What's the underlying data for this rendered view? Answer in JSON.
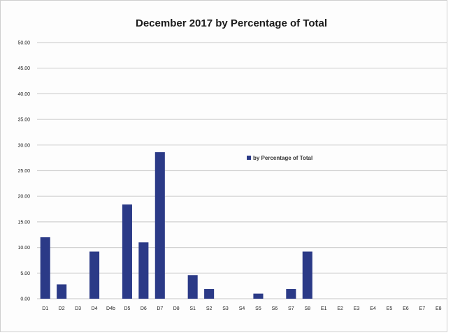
{
  "chart_data": {
    "type": "bar",
    "title": "December 2017 by Percentage of Total",
    "xlabel": "",
    "ylabel": "",
    "categories": [
      "D1",
      "D2",
      "D3",
      "D4",
      "D4b",
      "D5",
      "D6",
      "D7",
      "D8",
      "S1",
      "S2",
      "S3",
      "S4",
      "S5",
      "S6",
      "S7",
      "S8",
      "E1",
      "E2",
      "E3",
      "E4",
      "E5",
      "E6",
      "E7",
      "E8"
    ],
    "series": [
      {
        "name": "by Percentage of Total",
        "values": [
          12.0,
          2.8,
          0,
          9.2,
          0,
          18.4,
          11.0,
          28.6,
          0,
          4.6,
          1.9,
          0,
          0,
          1.0,
          0,
          1.9,
          9.2,
          0,
          0,
          0,
          0,
          0,
          0,
          0,
          0
        ]
      }
    ],
    "yticks": [
      "0.00",
      "5.00",
      "10.00",
      "15.00",
      "20.00",
      "25.00",
      "30.00",
      "35.00",
      "40.00",
      "45.00",
      "50.00"
    ],
    "ylim": [
      0,
      50
    ],
    "grid": true,
    "legend_position": "center-right",
    "bar_color": "#2b3a87",
    "grid_color": "#d2d2d2"
  }
}
